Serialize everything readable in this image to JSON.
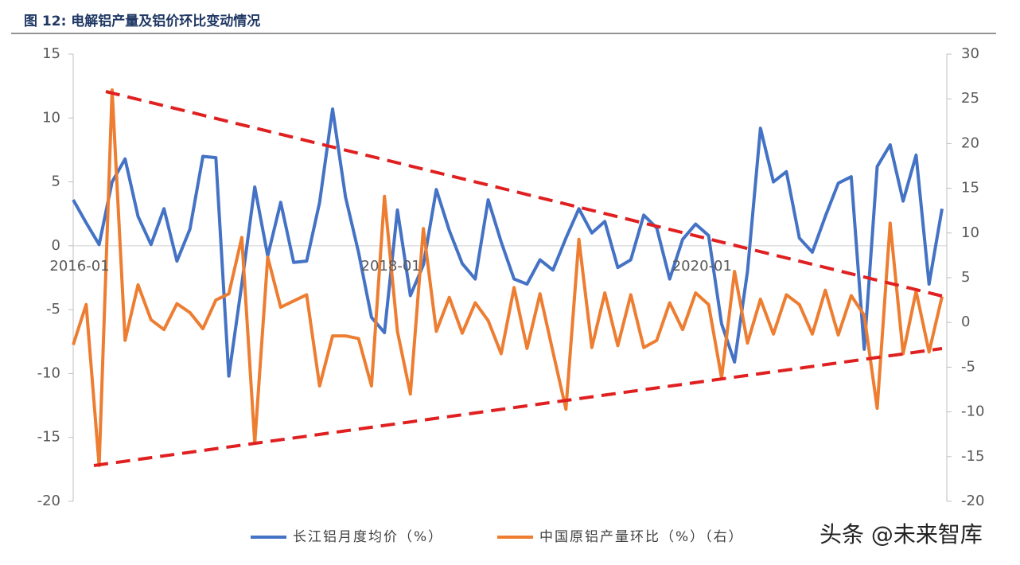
{
  "chart_data": {
    "type": "line",
    "title": "图 12:  电解铝产量及铝价环比变动情况",
    "categories": [
      "2016-01",
      null,
      null,
      null,
      null,
      null,
      null,
      null,
      null,
      null,
      null,
      null,
      null,
      null,
      null,
      null,
      null,
      null,
      null,
      null,
      null,
      null,
      null,
      null,
      "2018-01",
      null,
      null,
      null,
      null,
      null,
      null,
      null,
      null,
      null,
      null,
      null,
      null,
      null,
      null,
      null,
      null,
      null,
      null,
      null,
      null,
      null,
      null,
      null,
      "2020-01",
      null,
      null,
      null,
      null,
      null,
      null,
      null,
      null,
      null,
      null,
      null,
      null,
      null,
      null,
      null,
      null,
      null,
      null,
      null
    ],
    "series": [
      {
        "name": "长江铝月度均价（%）",
        "color": "#4472c4",
        "values": [
          3.6,
          1.8,
          0.1,
          5.0,
          6.8,
          2.3,
          0.1,
          2.9,
          -1.2,
          1.3,
          7.0,
          6.9,
          -10.2,
          -3.0,
          4.6,
          -0.8,
          3.4,
          -1.3,
          -1.2,
          3.4,
          10.7,
          3.8,
          -0.5,
          -5.6,
          -6.8,
          2.8,
          -3.9,
          -1.5,
          4.4,
          1.2,
          -1.4,
          -2.6,
          3.6,
          0.3,
          -2.6,
          -3.0,
          -1.1,
          -1.9,
          0.6,
          2.9,
          1.0,
          1.9,
          -1.7,
          -1.1,
          2.4,
          1.4,
          -2.6,
          0.5,
          1.7,
          0.8,
          -6.1,
          -9.1,
          -2.0,
          9.2,
          5.0,
          5.8,
          0.6,
          -0.5,
          2.3,
          4.9,
          5.4,
          -8.1,
          6.2,
          7.9,
          3.5,
          7.1,
          -3.0,
          2.9
        ]
      },
      {
        "name": "中国原铝产量环比（%）（右）",
        "color": "#ed7d31",
        "axis": "y2",
        "values": [
          -2.5,
          2.0,
          -16.0,
          26.0,
          -2.0,
          4.2,
          0.3,
          -0.8,
          2.1,
          1.1,
          -0.7,
          2.5,
          3.2,
          9.5,
          -13.5,
          7.3,
          1.7,
          2.4,
          3.1,
          -7.1,
          -1.5,
          -1.5,
          -1.8,
          -7.1,
          14.1,
          -1.0,
          -8.0,
          10.5,
          -1.0,
          2.8,
          -1.2,
          2.2,
          0.2,
          -3.5,
          3.9,
          -2.9,
          3.2,
          -3.3,
          -9.7,
          9.3,
          -2.8,
          3.3,
          -2.6,
          3.1,
          -2.8,
          -2.0,
          2.2,
          -0.8,
          3.3,
          2.0,
          -6.2,
          5.7,
          -2.3,
          2.6,
          -1.3,
          3.1,
          2.0,
          -1.3,
          3.6,
          -1.4,
          3.0,
          0.8,
          -9.6,
          11.1,
          -3.5,
          3.5,
          -3.3,
          2.9
        ]
      }
    ],
    "ylim": [
      -20,
      15
    ],
    "yticks": [
      -20,
      -15,
      -10,
      -5,
      0,
      5,
      10,
      15
    ],
    "y2lim": [
      -20,
      30
    ],
    "y2ticks": [
      -20,
      -15,
      -10,
      -5,
      0,
      5,
      10,
      15,
      20,
      25,
      30
    ]
  },
  "watermark": "头条 @未来智库"
}
